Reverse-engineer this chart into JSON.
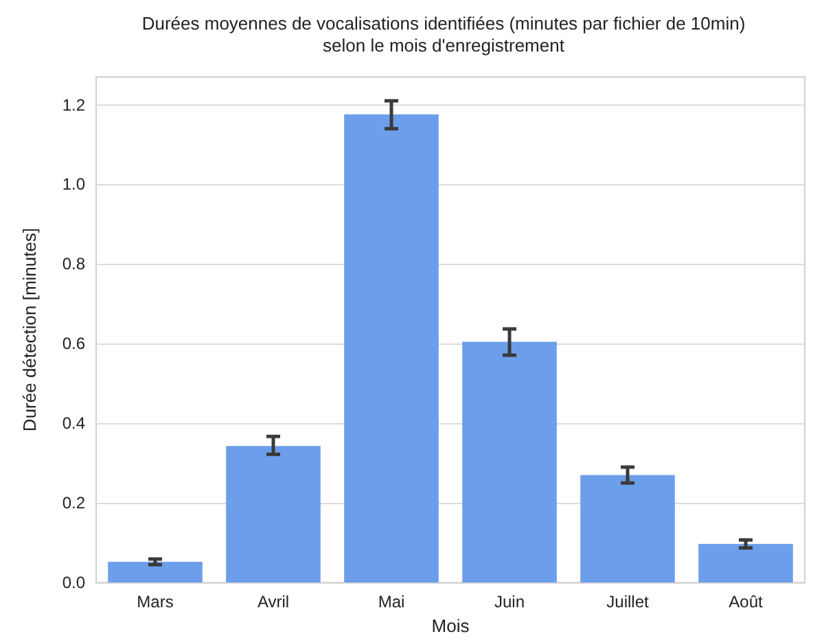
{
  "chart_data": {
    "type": "bar",
    "title": "Durées moyennes de vocalisations identifiées (minutes par fichier de 10min)\nselon le mois d'enregistrement",
    "xlabel": "Mois",
    "ylabel": "Durée détection [minutes]",
    "categories": [
      "Mars",
      "Avril",
      "Mai",
      "Juin",
      "Juillet",
      "Août"
    ],
    "values": [
      0.052,
      0.343,
      1.176,
      0.605,
      0.27,
      0.097
    ],
    "errors": [
      [
        0.045,
        0.059
      ],
      [
        0.322,
        0.367
      ],
      [
        1.14,
        1.21
      ],
      [
        0.571,
        0.637
      ],
      [
        0.25,
        0.29
      ],
      [
        0.087,
        0.107
      ]
    ],
    "color": "#6d9eeb",
    "ylim": [
      0,
      1.27
    ],
    "yticks": [
      {
        "value": 0,
        "label": "0.0"
      },
      0.2,
      0.4,
      0.6,
      0.8,
      {
        "value": 1,
        "label": "1.0"
      },
      1.2
    ],
    "grid": "y"
  }
}
